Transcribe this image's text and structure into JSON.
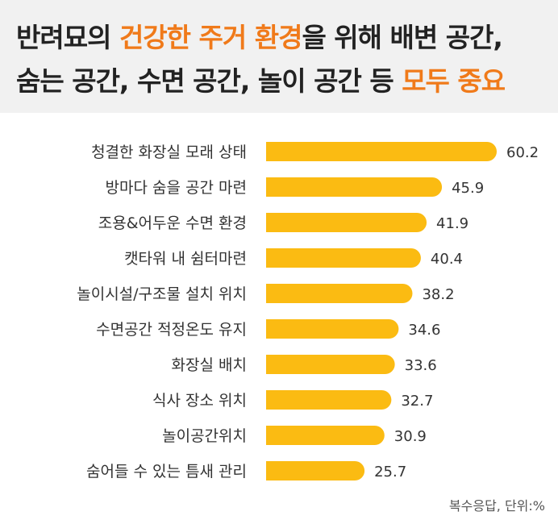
{
  "header": {
    "line1": {
      "pre": "반려묘의 ",
      "highlight": "건강한 주거 환경",
      "post": "을 위해 배변 공간,"
    },
    "line2": {
      "pre": "숨는 공간, 수면 공간, 놀이 공간 등 ",
      "highlight": "모두 중요",
      "post": ""
    }
  },
  "footnote": "복수응답, 단위:%",
  "colors": {
    "bar": "#fbbb12",
    "highlight": "#f07a1a",
    "header_bg": "#f1f1f1"
  },
  "chart_data": {
    "type": "bar",
    "orientation": "horizontal",
    "categories": [
      "청결한 화장실 모래 상태",
      "방마다 숨을 공간 마련",
      "조용&어두운 수면 환경",
      "캣타워 내 쉼터마련",
      "놀이시설/구조물 설치 위치",
      "수면공간 적정온도 유지",
      "화장실 배치",
      "식사 장소 위치",
      "놀이공간위치",
      "숨어들 수 있는 틈새 관리"
    ],
    "values": [
      60.2,
      45.9,
      41.9,
      40.4,
      38.2,
      34.6,
      33.6,
      32.7,
      30.9,
      25.7
    ],
    "title": "",
    "xlabel": "",
    "ylabel": "",
    "xlim": [
      0,
      60.2
    ],
    "grid": false,
    "data_labels": true
  }
}
